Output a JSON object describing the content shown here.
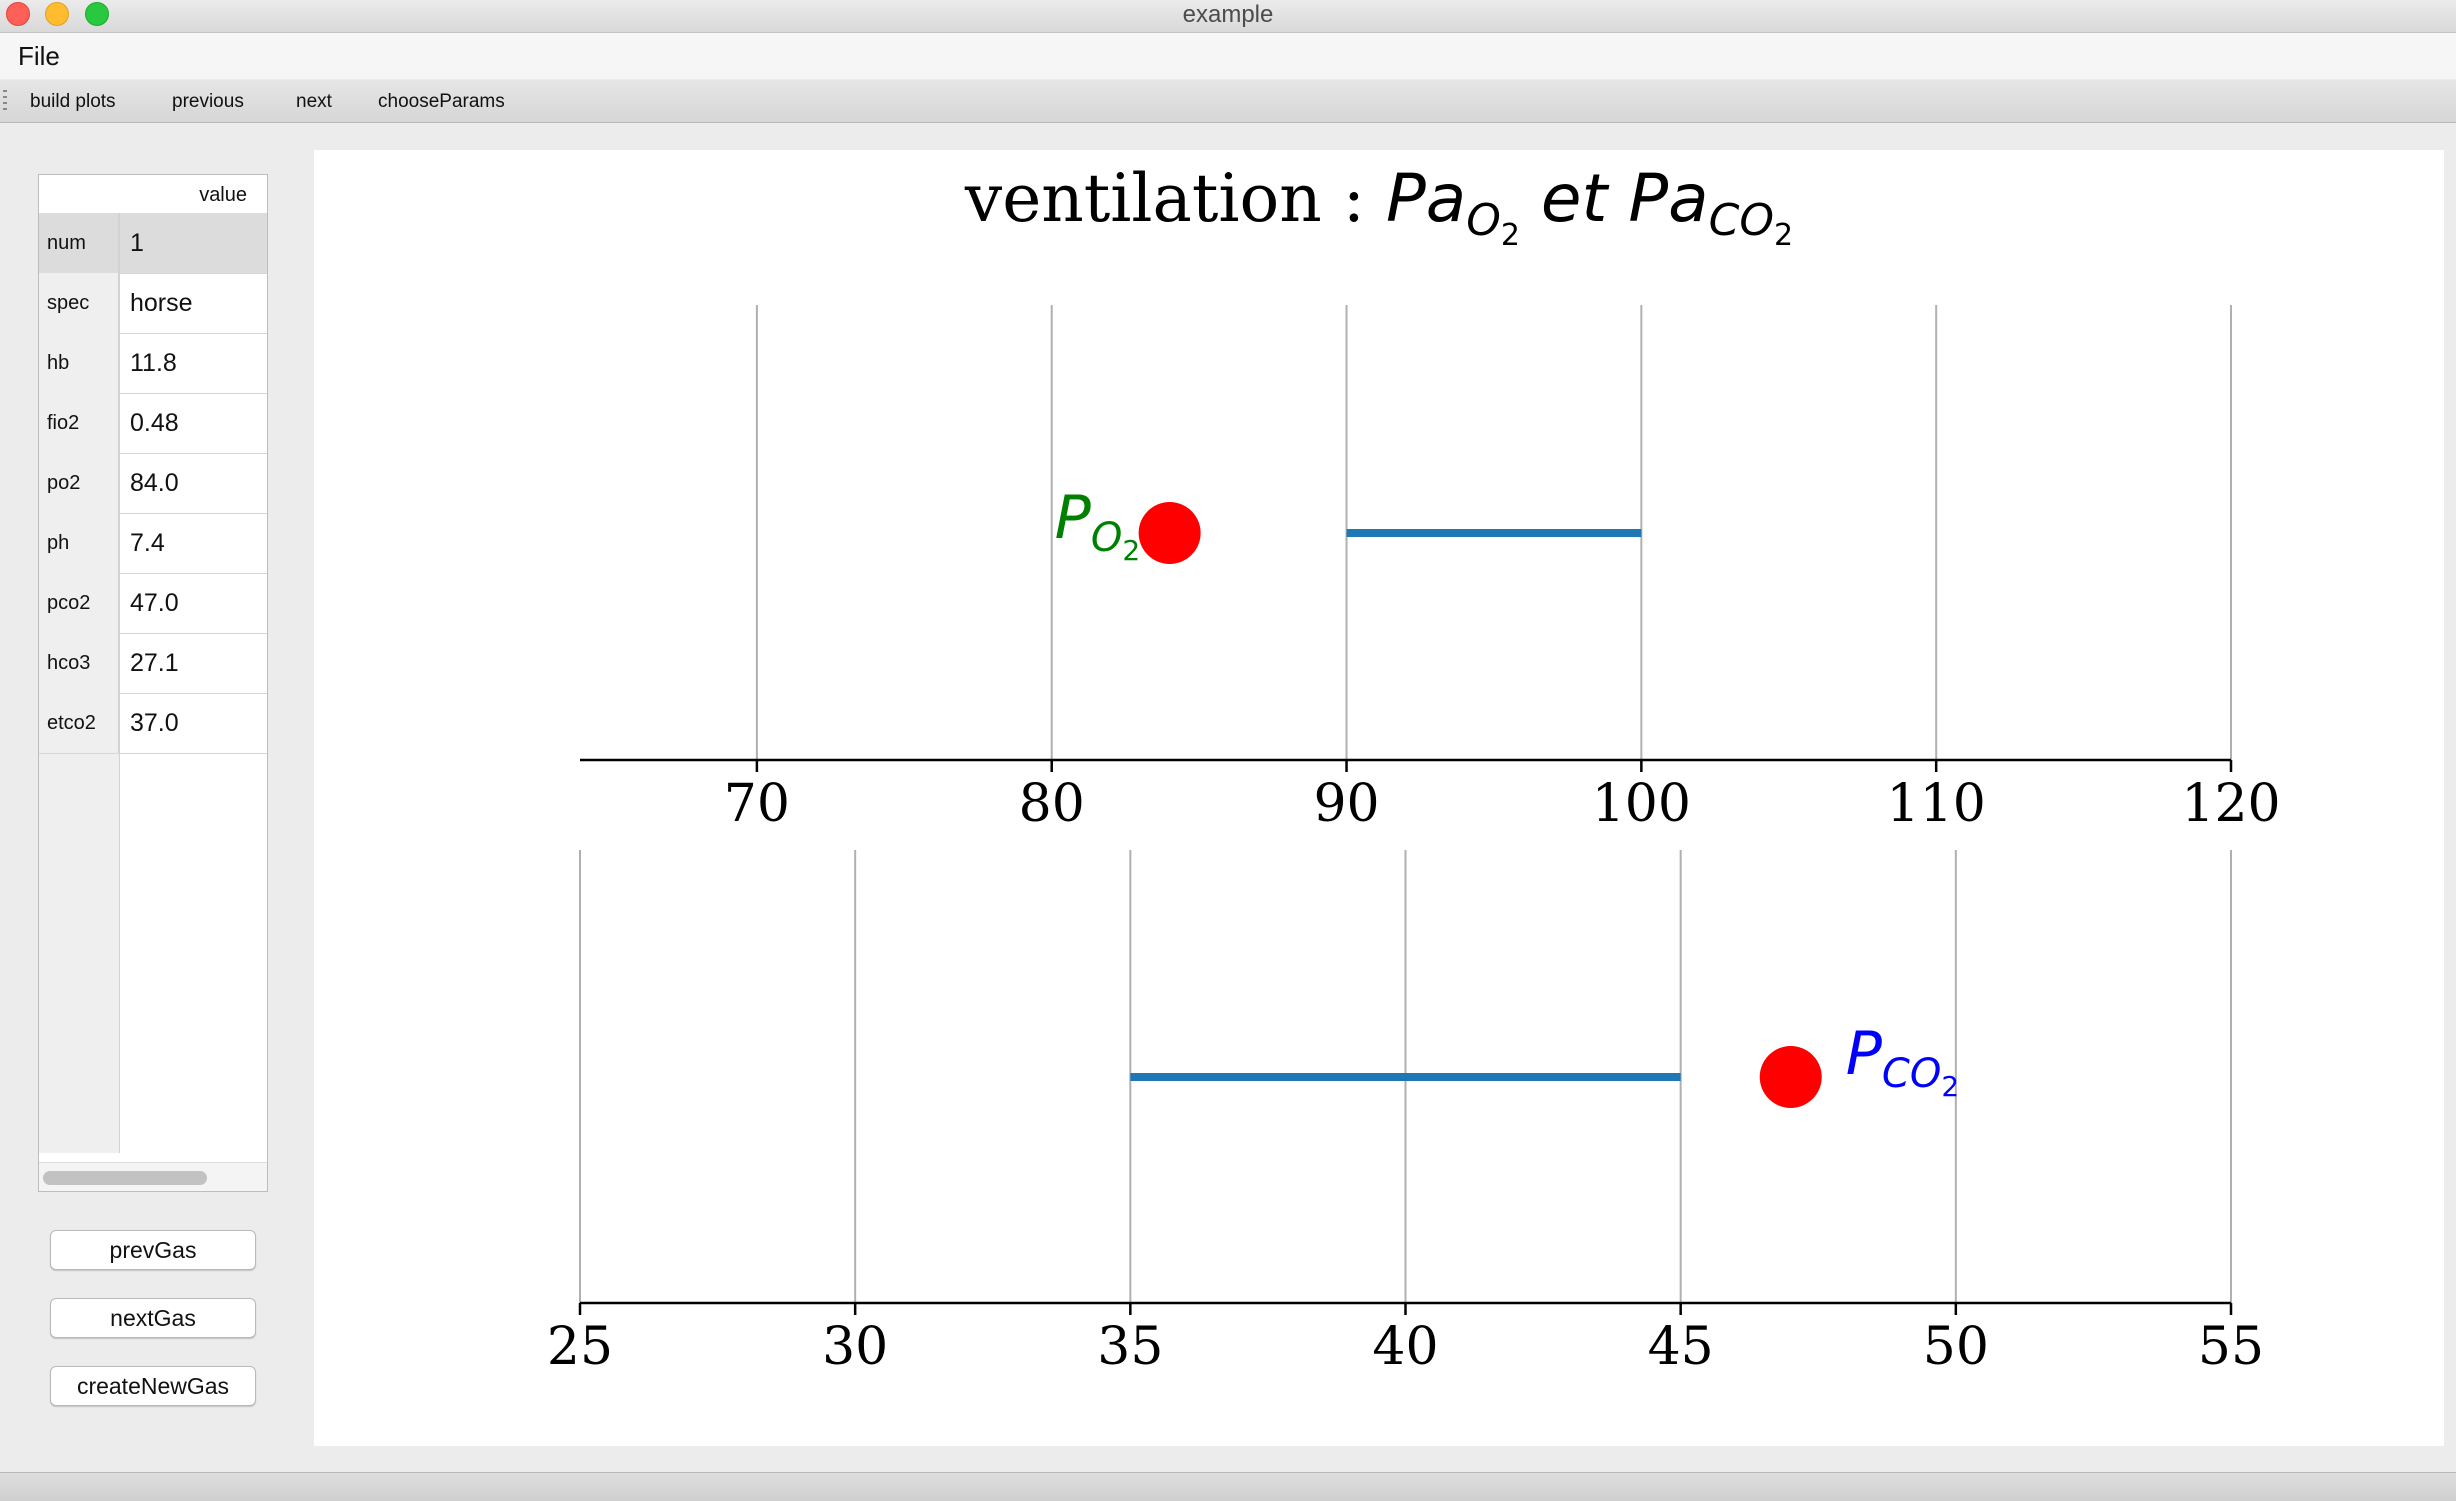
{
  "window": {
    "title": "example"
  },
  "menu": {
    "file": "File"
  },
  "toolbar": {
    "build_plots": "build plots",
    "previous": "previous",
    "next": "next",
    "choose_params": "chooseParams"
  },
  "table": {
    "header": "value",
    "rows": [
      {
        "key": "num",
        "value": "1"
      },
      {
        "key": "spec",
        "value": "horse"
      },
      {
        "key": "hb",
        "value": "11.8"
      },
      {
        "key": "fio2",
        "value": "0.48"
      },
      {
        "key": "po2",
        "value": "84.0"
      },
      {
        "key": "ph",
        "value": "7.4"
      },
      {
        "key": "pco2",
        "value": "47.0"
      },
      {
        "key": "hco3",
        "value": "27.1"
      },
      {
        "key": "etco2",
        "value": "37.0"
      }
    ]
  },
  "buttons": {
    "prev_gas": "prevGas",
    "next_gas": "nextGas",
    "create_new_gas": "createNewGas"
  },
  "plot": {
    "title_plain": "ventilation : ",
    "title_pa": "Pa",
    "title_o": "O",
    "title_2a": "2",
    "title_et": " et ",
    "title_pa2": "Pa",
    "title_co": "CO",
    "title_2b": "2"
  },
  "chart_data": [
    {
      "type": "scatter",
      "title": "ventilation : PaO2 et PaCO2",
      "xlim": [
        64,
        120
      ],
      "xticks": [
        70,
        80,
        90,
        100,
        110,
        120
      ],
      "grid": "vertical",
      "range_line": {
        "x": [
          90,
          100
        ],
        "color": "#1f77b4"
      },
      "point": {
        "x": 84.0,
        "color": "#ff0000"
      },
      "annotation": {
        "text": "PO2",
        "color": "#008000"
      }
    },
    {
      "type": "scatter",
      "xlim": [
        25,
        55
      ],
      "xticks": [
        25,
        30,
        35,
        40,
        45,
        50,
        55
      ],
      "grid": "vertical",
      "range_line": {
        "x": [
          35,
          45
        ],
        "color": "#1f77b4"
      },
      "point": {
        "x": 47.0,
        "color": "#ff0000"
      },
      "annotation": {
        "text": "PCO2",
        "color": "#0000ff"
      }
    }
  ]
}
